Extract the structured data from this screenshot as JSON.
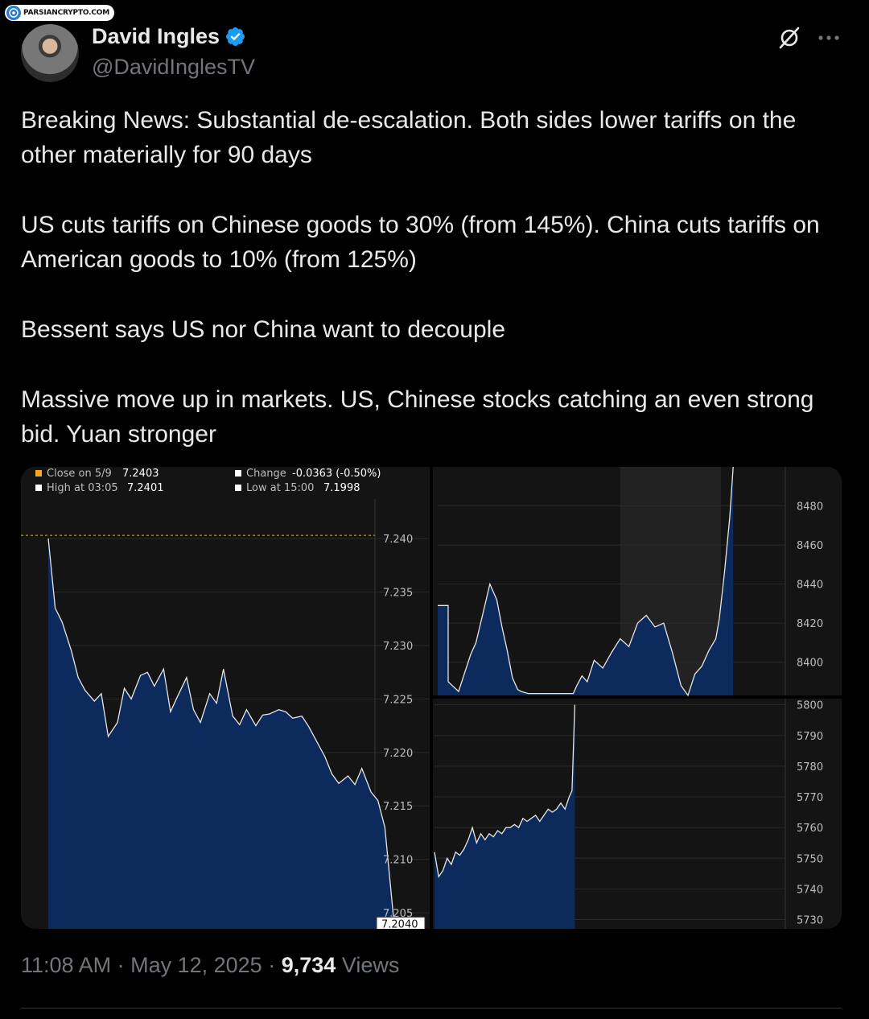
{
  "watermark": {
    "text": "PARSIANCRYPTO.COM"
  },
  "author": {
    "name": "David Ingles",
    "handle": "@DavidInglesTV",
    "verified": true
  },
  "icons": {
    "grok": "grok-slash-icon",
    "more": "more-horizontal-icon",
    "verified": "verified-badge-icon"
  },
  "tweet": {
    "paragraphs": [
      "Breaking News: Substantial de-escalation. Both sides lower tariffs on the other materially for 90 days",
      "US cuts tariffs on Chinese goods to 30% (from 145%). China cuts tariffs on American goods to 10% (from 125%)",
      "Bessent says US nor China want to decouple",
      "Massive move up in markets. US, Chinese stocks catching an even strong bid. Yuan stronger"
    ],
    "time": "11:08 AM",
    "date": "May 12, 2025",
    "views_count": "9,734",
    "views_label": "Views"
  },
  "colors": {
    "background": "#000000",
    "text": "#e7e9ea",
    "muted": "#71767b",
    "accent": "#1d9bf0",
    "chart_fill": "#0c2a5c",
    "close_marker": "#f5a623"
  },
  "chart_data": [
    {
      "type": "area",
      "legend": {
        "close": {
          "label": "Close on 5/9",
          "value": "7.2403"
        },
        "high": {
          "label": "High at 03:05",
          "value": "7.2401"
        },
        "change": {
          "label": "Change",
          "value": "-0.0363 (-0.50%)"
        },
        "low": {
          "label": "Low at 15:00",
          "value": "7.1998"
        }
      },
      "y_ticks": [
        "7.240",
        "7.235",
        "7.230",
        "7.225",
        "7.220",
        "7.215",
        "7.210",
        "7.205"
      ],
      "ylim": [
        7.2035,
        7.2437
      ],
      "previous_close": 7.2403,
      "last_value_label": "7.2040",
      "last_value": 7.204,
      "x": [
        0,
        0.3,
        0.6,
        1.0,
        1.3,
        1.6,
        2.0,
        2.3,
        2.6,
        3.0,
        3.3,
        3.6,
        4.0,
        4.3,
        4.6,
        5.0,
        5.3,
        5.6,
        6.0,
        6.3,
        6.6,
        7.0,
        7.3,
        7.6,
        8.0,
        8.3,
        8.6,
        9.0,
        9.3,
        9.6,
        10.0,
        10.3,
        10.6,
        11.0,
        11.3,
        11.6,
        12.0,
        12.3,
        12.6,
        13.0,
        13.3,
        13.6,
        14.0,
        14.3,
        14.6,
        15.0
      ],
      "values": [
        7.24,
        7.2335,
        7.2322,
        7.2295,
        7.227,
        7.2258,
        7.2248,
        7.2255,
        7.2215,
        7.2228,
        7.226,
        7.225,
        7.2272,
        7.2275,
        7.2262,
        7.2278,
        7.2238,
        7.2252,
        7.227,
        7.224,
        7.2228,
        7.2255,
        7.2246,
        7.2278,
        7.2234,
        7.2226,
        7.224,
        7.2225,
        7.2235,
        7.2236,
        7.224,
        7.2238,
        7.2232,
        7.2234,
        7.2224,
        7.2212,
        7.2196,
        7.218,
        7.2171,
        7.2178,
        7.217,
        7.2185,
        7.2163,
        7.2155,
        7.213,
        7.204
      ],
      "flat_after": 15.0,
      "x_end": 21.5
    },
    {
      "type": "area",
      "y_ticks": [
        "8480",
        "8460",
        "8440",
        "8420",
        "8400"
      ],
      "ylim": [
        8383,
        8500
      ],
      "x": [
        0,
        0.6,
        0.6,
        1.2,
        1.6,
        1.9,
        2.2,
        2.6,
        3.0,
        3.4,
        3.7,
        4.0,
        4.3,
        4.6,
        4.8,
        5.2,
        5.6,
        6.0,
        6.6,
        7.0,
        7.4,
        7.8,
        8.0,
        8.3,
        8.6,
        9.0,
        9.5,
        10.0,
        10.5,
        11.0,
        11.5,
        12.0,
        12.5,
        13.0,
        13.5,
        14.0,
        14.4,
        14.8,
        15.2,
        15.6,
        16.0,
        16.2,
        16.5,
        16.8,
        17.0
      ],
      "values": [
        8429,
        8429,
        8390,
        8385,
        8396,
        8404,
        8410,
        8425,
        8440,
        8432,
        8418,
        8406,
        8392,
        8386,
        8385,
        8384,
        8384,
        8384,
        8384,
        8384,
        8384,
        8384,
        8388,
        8393,
        8390,
        8401,
        8397,
        8405,
        8412,
        8408,
        8420,
        8424,
        8418,
        8420,
        8405,
        8388,
        8383,
        8394,
        8398,
        8406,
        8412,
        8422,
        8446,
        8474,
        8500
      ],
      "shaded_region": [
        10.5,
        16.3
      ],
      "x_end": 20
    },
    {
      "type": "area",
      "y_ticks": [
        "5800",
        "5790",
        "5780",
        "5770",
        "5760",
        "5750",
        "5740",
        "5730"
      ],
      "ylim": [
        5727,
        5802
      ],
      "x": [
        0,
        0.3,
        0.6,
        0.9,
        1.2,
        1.5,
        1.8,
        2.1,
        2.4,
        2.7,
        3.0,
        3.3,
        3.6,
        3.9,
        4.2,
        4.5,
        4.8,
        5.1,
        5.4,
        5.7,
        6.0,
        6.3,
        6.6,
        6.9,
        7.2,
        7.5,
        7.8,
        8.1,
        8.4,
        8.7,
        9.0,
        9.3,
        9.6,
        9.8,
        10.0
      ],
      "values": [
        5752,
        5744,
        5746,
        5750,
        5748,
        5752,
        5751,
        5753,
        5756,
        5760,
        5755,
        5758,
        5756,
        5758,
        5757,
        5759,
        5758,
        5760,
        5760,
        5761,
        5760,
        5763,
        5762,
        5763,
        5764,
        5762,
        5764,
        5766,
        5765,
        5766,
        5768,
        5766,
        5770,
        5772,
        5800
      ],
      "x_end": 25
    }
  ]
}
